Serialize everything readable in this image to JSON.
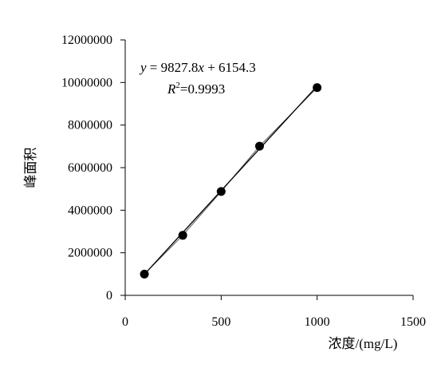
{
  "chart_data": {
    "type": "scatter",
    "xlabel": "浓度/(mg/L)",
    "ylabel": "峰面积",
    "xlim": [
      0,
      1500
    ],
    "ylim": [
      0,
      12000000
    ],
    "x_ticks": [
      0,
      500,
      1000,
      1500
    ],
    "y_ticks": [
      0,
      2000000,
      4000000,
      6000000,
      8000000,
      10000000,
      12000000
    ],
    "grid": false,
    "series": [
      {
        "x": [
          100,
          300,
          500,
          700,
          1000
        ],
        "y": [
          1000000,
          2820000,
          4880000,
          7010000,
          9760000
        ],
        "marker": "circle",
        "color": "#000000"
      }
    ],
    "trendline": {
      "slope": 9827.8,
      "intercept": 6154.3,
      "x_range": [
        100,
        1000
      ]
    },
    "annotations": {
      "equation": {
        "y": "y",
        "eq": " = 9827.8",
        "x": "x",
        "rest": " + 6154.3"
      },
      "r2": {
        "r": "R",
        "sup": "2",
        "value": "=0.9993"
      }
    }
  }
}
